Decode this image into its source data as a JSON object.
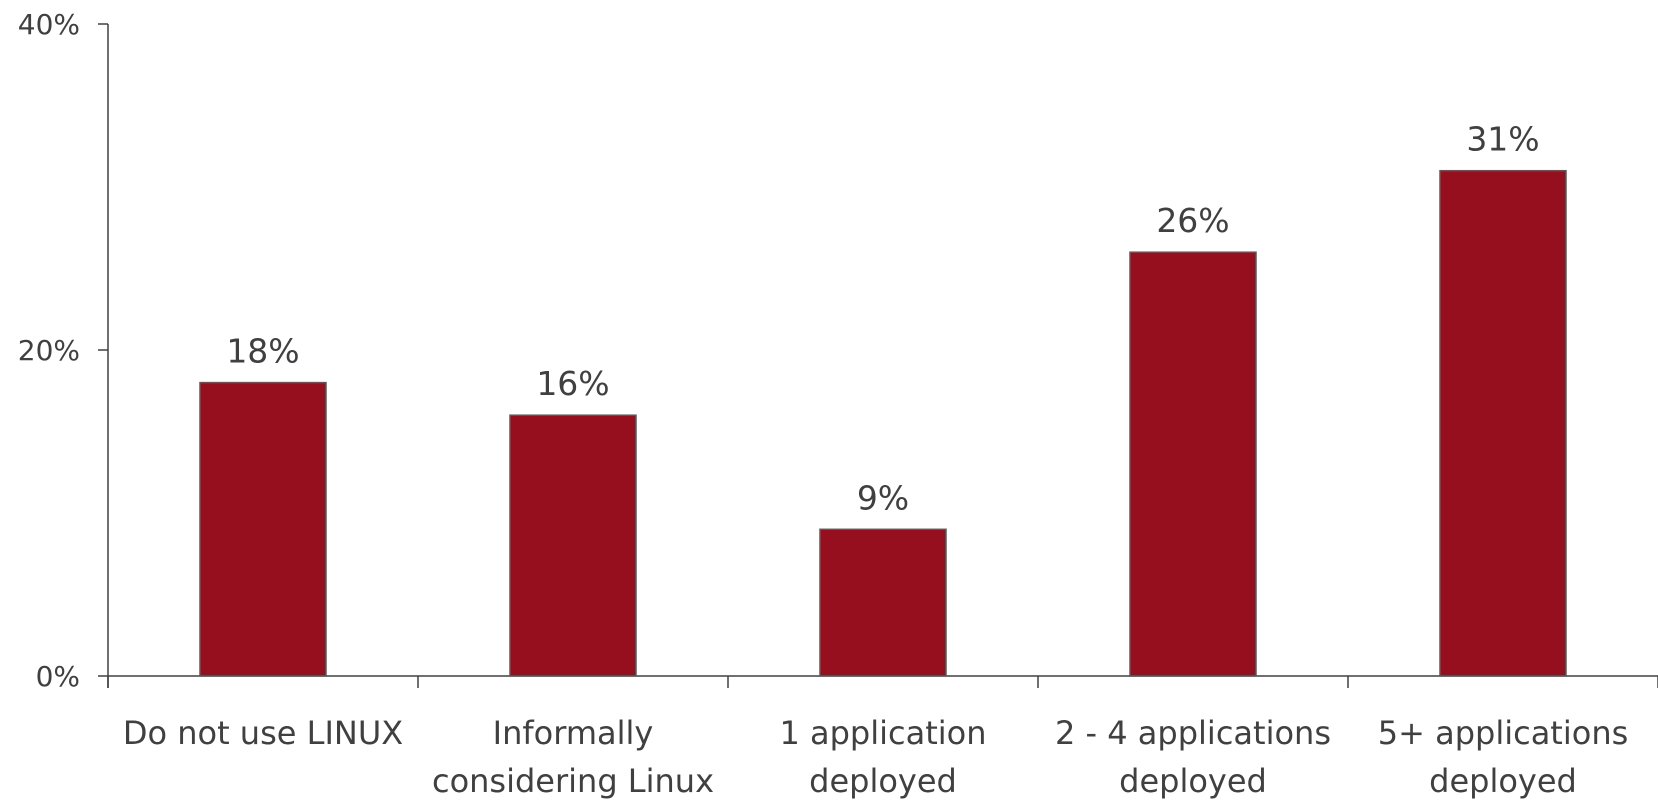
{
  "chart_data": {
    "type": "bar",
    "categories": [
      [
        "Do not use LINUX"
      ],
      [
        "Informally",
        "considering Linux"
      ],
      [
        "1 application",
        "deployed"
      ],
      [
        "2 - 4 applications",
        "deployed"
      ],
      [
        "5+ applications",
        "deployed"
      ]
    ],
    "values": [
      18,
      16,
      9,
      26,
      31
    ],
    "data_labels": [
      "18%",
      "16%",
      "9%",
      "26%",
      "31%"
    ],
    "ylim": [
      0,
      40
    ],
    "yticks": [
      0,
      20,
      40
    ],
    "ytick_labels": [
      "0%",
      "20%",
      "40%"
    ],
    "title": "",
    "xlabel": "",
    "ylabel": "",
    "grid": false,
    "legend": "none",
    "colors": {
      "bar_fill": "#960F1E",
      "bar_stroke": "#5a5a5a",
      "axis": "#404040",
      "text": "#404040"
    }
  }
}
